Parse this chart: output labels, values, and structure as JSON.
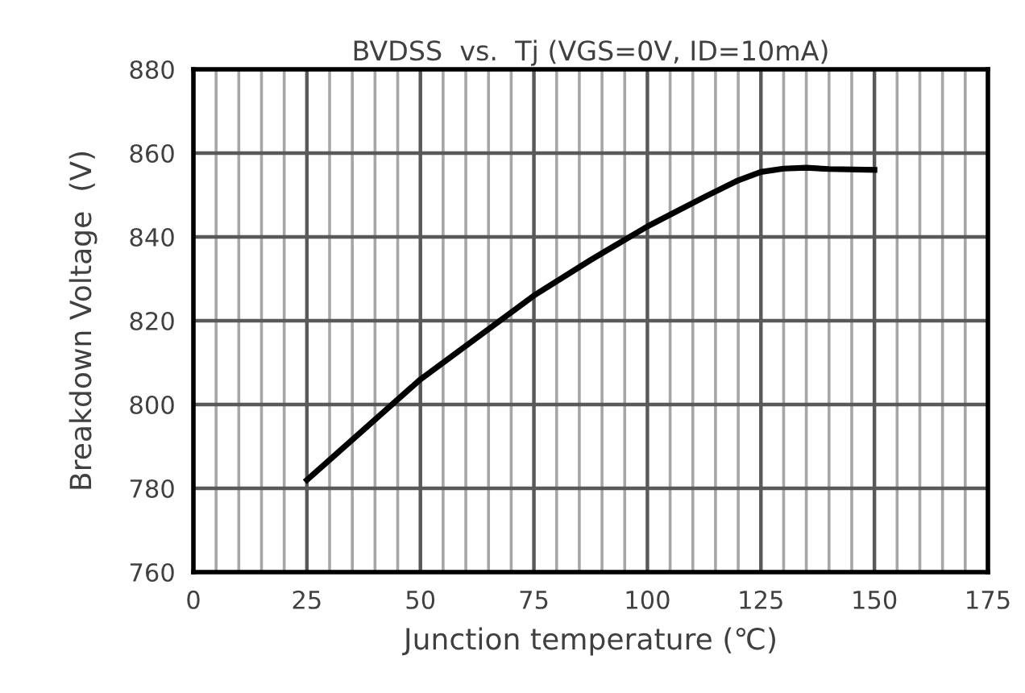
{
  "chart_data": {
    "type": "line",
    "title": "BVDSS  vs.  Tj (VGS=0V, ID=10mA)",
    "xlabel": "Junction temperature (℃)",
    "ylabel": "Breakdown Voltage  (V)",
    "x": [
      25,
      37.5,
      50,
      62.5,
      75,
      87.5,
      100,
      112.5,
      120,
      125,
      130,
      135,
      140,
      150
    ],
    "series": [
      {
        "color": "#000000",
        "values": [
          782,
          794,
          806,
          816,
          826,
          834.5,
          842.5,
          849.5,
          853.5,
          855.5,
          856.3,
          856.5,
          856.2,
          856
        ]
      }
    ],
    "xlim": [
      0,
      175
    ],
    "ylim": [
      760,
      880
    ],
    "xticks": [
      0,
      {
        "value": 5,
        "label": null
      },
      {
        "value": 10,
        "label": null
      },
      {
        "value": 15,
        "label": null
      },
      {
        "value": 20,
        "label": null
      },
      25,
      {
        "value": 30,
        "label": null
      },
      {
        "value": 35,
        "label": null
      },
      {
        "value": 40,
        "label": null
      },
      {
        "value": 45,
        "label": null
      },
      50,
      {
        "value": 55,
        "label": null
      },
      {
        "value": 60,
        "label": null
      },
      {
        "value": 65,
        "label": null
      },
      {
        "value": 70,
        "label": null
      },
      75,
      {
        "value": 80,
        "label": null
      },
      {
        "value": 85,
        "label": null
      },
      {
        "value": 90,
        "label": null
      },
      {
        "value": 95,
        "label": null
      },
      100,
      {
        "value": 105,
        "label": null
      },
      {
        "value": 110,
        "label": null
      },
      {
        "value": 115,
        "label": null
      },
      {
        "value": 120,
        "label": null
      },
      125,
      {
        "value": 130,
        "label": null
      },
      {
        "value": 135,
        "label": null
      },
      {
        "value": 140,
        "label": null
      },
      {
        "value": 145,
        "label": null
      },
      150,
      {
        "value": 155,
        "label": null
      },
      {
        "value": 160,
        "label": null
      },
      {
        "value": 165,
        "label": null
      },
      {
        "value": 170,
        "label": null
      },
      175
    ],
    "yticks": [
      760,
      780,
      800,
      820,
      840,
      860,
      880
    ],
    "grid": true,
    "marker": "none",
    "line_style": "solid"
  }
}
